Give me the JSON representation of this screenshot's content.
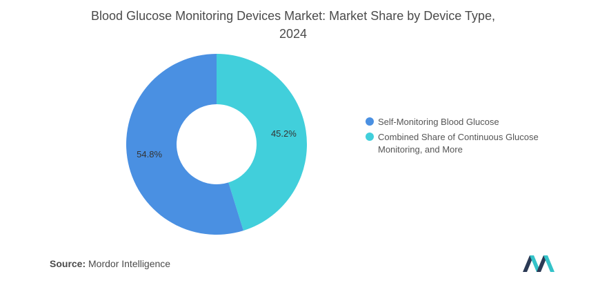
{
  "chart_data": {
    "type": "pie",
    "donut": true,
    "title_line1": "Blood Glucose Monitoring Devices Market: Market Share by Device Type,",
    "title_line2": "2024",
    "slices": [
      {
        "name": "Self-Monitoring Blood Glucose",
        "value": 54.8,
        "label": "54.8%",
        "color": "#4a90e2"
      },
      {
        "name": "Combined Share of Continuous Glucose Monitoring, and More",
        "value": 45.2,
        "label": "45.2%",
        "color": "#41cfdb"
      }
    ],
    "legend_position": "right"
  },
  "source": {
    "label": "Source:",
    "text": "Mordor Intelligence"
  },
  "colors": {
    "logo_dark": "#2b3a55",
    "logo_teal": "#34c3c9"
  }
}
